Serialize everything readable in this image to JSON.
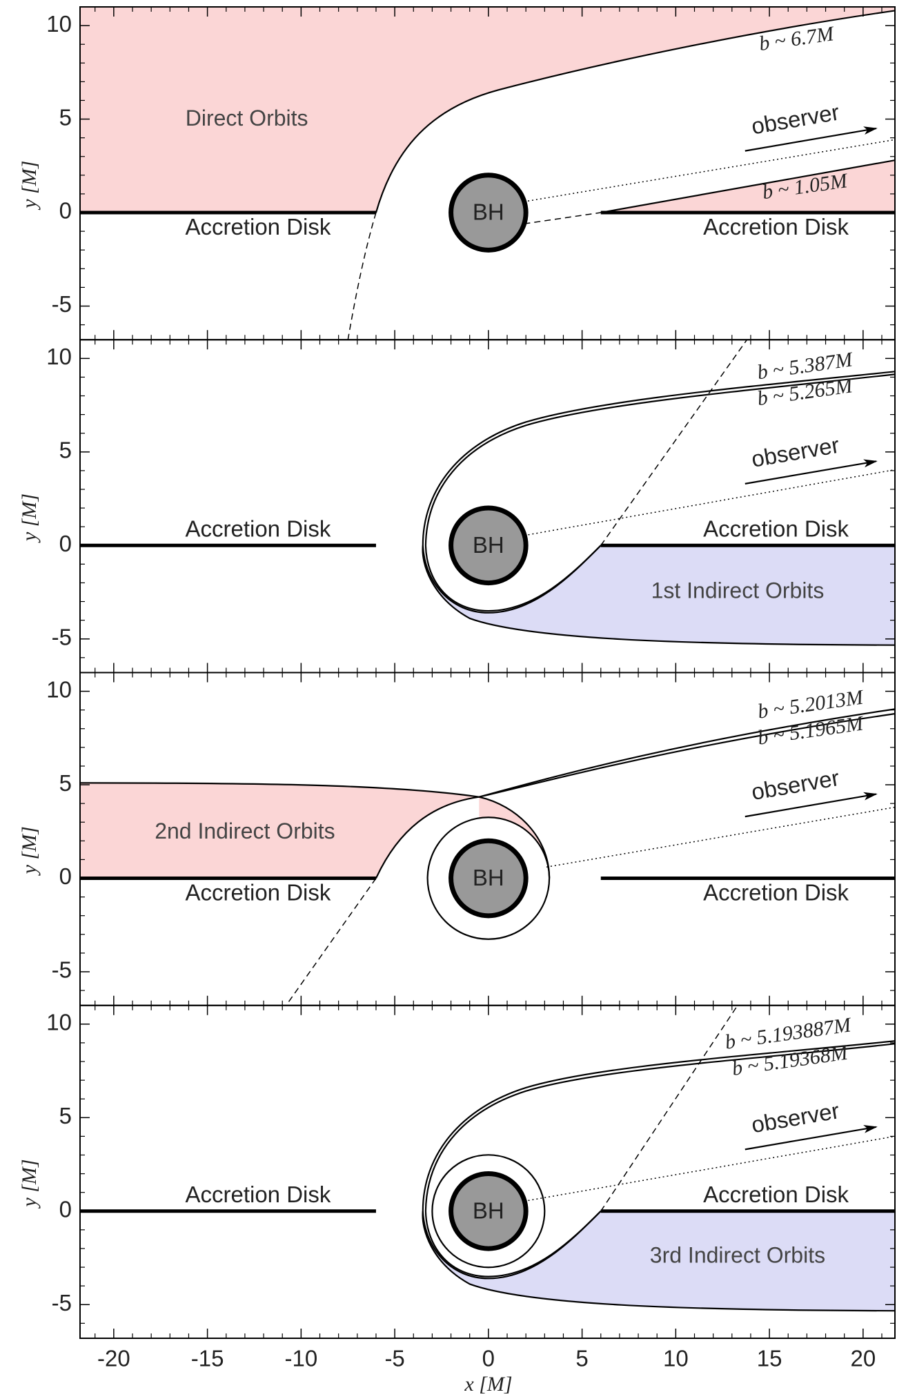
{
  "chart_data": {
    "type": "orbit-panels",
    "xlim": [
      -21.8,
      21.7
    ],
    "xticks": [
      -20,
      -15,
      -10,
      -5,
      0,
      5,
      10,
      15,
      20
    ],
    "xminor": 1,
    "xlabel": "x [M]",
    "panels": [
      {
        "ylim": [
          -6.8,
          11
        ],
        "yticks": [
          -5,
          0,
          5,
          10
        ],
        "yminor": 1,
        "ylabel": "y [M]",
        "region": "Direct Orbits",
        "region_color": "#fbd6d6",
        "disk_labels": [
          "Accretion Disk",
          "Accretion Disk"
        ],
        "hole": "BH",
        "observer": "observer",
        "b_labels": [
          "b ~ 6.7M",
          "b ~ 1.05M"
        ]
      },
      {
        "ylim": [
          -6.8,
          11
        ],
        "yticks": [
          -5,
          0,
          5,
          10
        ],
        "yminor": 1,
        "ylabel": "y [M]",
        "region": "1st Indirect Orbits",
        "region_color": "#dcdcf6",
        "disk_labels": [
          "Accretion Disk",
          "Accretion Disk"
        ],
        "hole": "BH",
        "observer": "observer",
        "b_labels": [
          "b ~ 5.387M",
          "b ~ 5.265M"
        ]
      },
      {
        "ylim": [
          -6.8,
          11
        ],
        "yticks": [
          -5,
          0,
          5,
          10
        ],
        "yminor": 1,
        "ylabel": "y [M]",
        "region": "2nd Indirect Orbits",
        "region_color": "#fbd6d6",
        "disk_labels": [
          "Accretion Disk",
          "Accretion Disk"
        ],
        "hole": "BH",
        "observer": "observer",
        "b_labels": [
          "b ~ 5.2013M",
          "b ~ 5.1965M"
        ]
      },
      {
        "ylim": [
          -6.8,
          11
        ],
        "yticks": [
          -5,
          0,
          5,
          10
        ],
        "yminor": 1,
        "ylabel": "y [M]",
        "region": "3rd Indirect Orbits",
        "region_color": "#dcdcf6",
        "disk_labels": [
          "Accretion Disk",
          "Accretion Disk"
        ],
        "hole": "BH",
        "observer": "observer",
        "b_labels": [
          "b ~ 5.193887M",
          "b ~ 5.19368M"
        ]
      }
    ]
  }
}
